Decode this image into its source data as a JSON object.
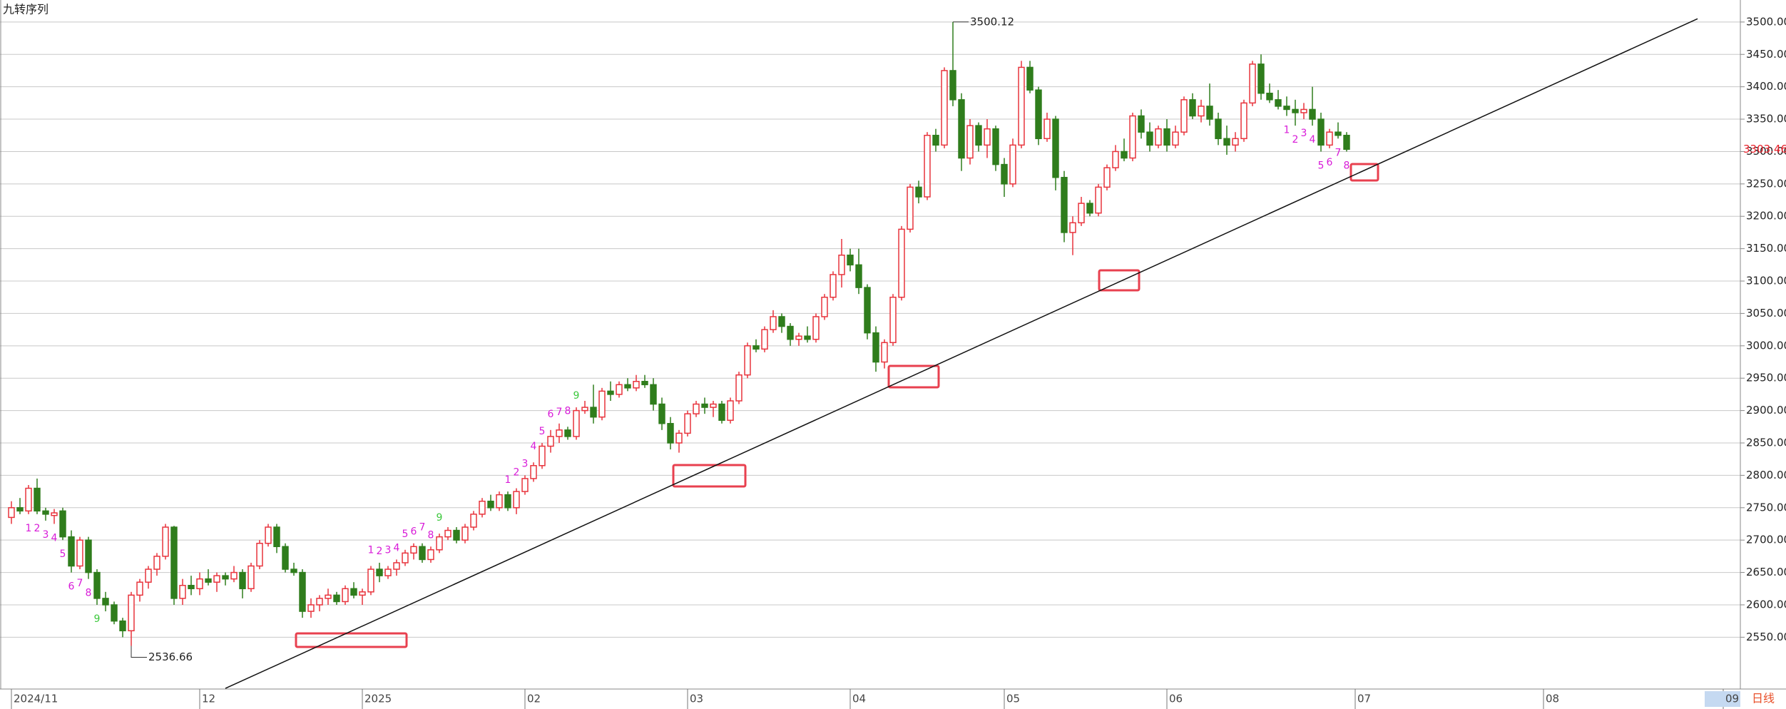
{
  "chart_data": {
    "type": "candlestick",
    "title": "九转序列",
    "period_label": "日线",
    "open": [
      2735,
      2750,
      2745,
      2780,
      2745,
      2738,
      2745,
      2705,
      2660,
      2700,
      2650,
      2610,
      2600,
      2575,
      2560,
      2615,
      2635,
      2655,
      2675,
      2720,
      2610,
      2630,
      2625,
      2640,
      2635,
      2645,
      2640,
      2650,
      2625,
      2660,
      2695,
      2720,
      2690,
      2655,
      2650,
      2590,
      2600,
      2610,
      2615,
      2605,
      2625,
      2615,
      2620,
      2655,
      2645,
      2655,
      2665,
      2680,
      2690,
      2670,
      2685,
      2705,
      2715,
      2700,
      2720,
      2740,
      2760,
      2750,
      2770,
      2750,
      2775,
      2795,
      2815,
      2845,
      2860,
      2870,
      2860,
      2900,
      2905,
      2890,
      2930,
      2925,
      2940,
      2935,
      2945,
      2940,
      2910,
      2880,
      2850,
      2865,
      2895,
      2910,
      2905,
      2910,
      2885,
      2915,
      2955,
      3000,
      2995,
      3025,
      3045,
      3030,
      3010,
      3015,
      3010,
      3045,
      3075,
      3110,
      3140,
      3125,
      3090,
      3020,
      2975,
      3005,
      3075,
      3180,
      3245,
      3230,
      3325,
      3310,
      3425,
      3380,
      3290,
      3340,
      3310,
      3335,
      3280,
      3250,
      3310,
      3430,
      3395,
      3320,
      3350,
      3260,
      3175,
      3190,
      3220,
      3205,
      3245,
      3275,
      3300,
      3290,
      3355,
      3330,
      3310,
      3335,
      3310,
      3330,
      3380,
      3355,
      3370,
      3350,
      3320,
      3310,
      3320,
      3375,
      3435,
      3390,
      3380,
      3370,
      3365,
      3360,
      3365,
      3350,
      3310,
      3330,
      3325
    ],
    "high": [
      2760,
      2765,
      2785,
      2795,
      2750,
      2748,
      2750,
      2715,
      2705,
      2705,
      2655,
      2620,
      2605,
      2580,
      2620,
      2640,
      2660,
      2680,
      2725,
      2722,
      2640,
      2645,
      2650,
      2655,
      2650,
      2650,
      2660,
      2655,
      2665,
      2700,
      2725,
      2725,
      2695,
      2665,
      2655,
      2610,
      2615,
      2625,
      2620,
      2630,
      2635,
      2625,
      2660,
      2665,
      2660,
      2670,
      2685,
      2695,
      2695,
      2690,
      2710,
      2720,
      2720,
      2725,
      2745,
      2765,
      2770,
      2775,
      2775,
      2780,
      2800,
      2820,
      2850,
      2870,
      2880,
      2875,
      2905,
      2915,
      2940,
      2935,
      2945,
      2945,
      2950,
      2955,
      2955,
      2950,
      2920,
      2890,
      2870,
      2900,
      2915,
      2920,
      2915,
      2915,
      2920,
      2960,
      3005,
      3010,
      3030,
      3055,
      3050,
      3035,
      3020,
      3030,
      3050,
      3080,
      3115,
      3165,
      3150,
      3150,
      3095,
      3030,
      3010,
      3080,
      3185,
      3250,
      3255,
      3330,
      3335,
      3430,
      3500.12,
      3390,
      3350,
      3345,
      3350,
      3340,
      3290,
      3320,
      3440,
      3440,
      3400,
      3360,
      3355,
      3270,
      3200,
      3230,
      3225,
      3250,
      3280,
      3310,
      3320,
      3360,
      3365,
      3345,
      3340,
      3350,
      3340,
      3385,
      3390,
      3380,
      3405,
      3360,
      3340,
      3330,
      3380,
      3440,
      3450,
      3405,
      3395,
      3385,
      3380,
      3375,
      3400,
      3360,
      3335,
      3345,
      3330
    ],
    "low": [
      2725,
      2740,
      2740,
      2740,
      2730,
      2725,
      2700,
      2650,
      2655,
      2640,
      2600,
      2590,
      2570,
      2550,
      2536.66,
      2605,
      2625,
      2645,
      2670,
      2600,
      2600,
      2615,
      2615,
      2630,
      2620,
      2630,
      2635,
      2610,
      2620,
      2655,
      2690,
      2680,
      2650,
      2645,
      2580,
      2580,
      2590,
      2600,
      2600,
      2600,
      2610,
      2600,
      2615,
      2635,
      2640,
      2645,
      2660,
      2670,
      2665,
      2665,
      2680,
      2700,
      2695,
      2695,
      2715,
      2735,
      2745,
      2745,
      2745,
      2740,
      2770,
      2790,
      2810,
      2835,
      2850,
      2855,
      2855,
      2895,
      2880,
      2885,
      2915,
      2920,
      2930,
      2930,
      2935,
      2900,
      2870,
      2840,
      2835,
      2860,
      2890,
      2895,
      2890,
      2880,
      2880,
      2910,
      2950,
      2990,
      2990,
      3020,
      3020,
      3000,
      3000,
      3005,
      3005,
      3040,
      3070,
      3090,
      3115,
      3080,
      3010,
      2960,
      2965,
      3000,
      3070,
      3175,
      3220,
      3225,
      3300,
      3305,
      3370,
      3270,
      3280,
      3300,
      3290,
      3270,
      3230,
      3245,
      3305,
      3390,
      3310,
      3315,
      3240,
      3160,
      3140,
      3185,
      3200,
      3200,
      3240,
      3270,
      3285,
      3285,
      3320,
      3300,
      3305,
      3300,
      3305,
      3325,
      3350,
      3345,
      3340,
      3310,
      3295,
      3300,
      3315,
      3370,
      3380,
      3375,
      3365,
      3355,
      3340,
      3350,
      3340,
      3300,
      3305,
      3320,
      3300
    ],
    "close": [
      2750,
      2745,
      2780,
      2745,
      2740,
      2742,
      2705,
      2660,
      2700,
      2650,
      2610,
      2600,
      2575,
      2560,
      2615,
      2635,
      2655,
      2675,
      2720,
      2610,
      2630,
      2625,
      2640,
      2635,
      2645,
      2640,
      2650,
      2625,
      2660,
      2695,
      2720,
      2690,
      2655,
      2650,
      2590,
      2600,
      2610,
      2615,
      2605,
      2625,
      2615,
      2620,
      2655,
      2645,
      2655,
      2665,
      2680,
      2690,
      2670,
      2685,
      2705,
      2715,
      2700,
      2720,
      2740,
      2760,
      2750,
      2770,
      2750,
      2775,
      2795,
      2815,
      2845,
      2860,
      2870,
      2860,
      2900,
      2905,
      2890,
      2930,
      2925,
      2940,
      2935,
      2945,
      2940,
      2910,
      2880,
      2850,
      2865,
      2895,
      2910,
      2905,
      2910,
      2885,
      2915,
      2955,
      3000,
      2995,
      3025,
      3045,
      3030,
      3010,
      3015,
      3010,
      3045,
      3075,
      3110,
      3140,
      3125,
      3090,
      3020,
      2975,
      3005,
      3075,
      3180,
      3245,
      3230,
      3325,
      3310,
      3425,
      3380,
      3290,
      3340,
      3310,
      3335,
      3280,
      3250,
      3310,
      3430,
      3395,
      3320,
      3350,
      3260,
      3175,
      3190,
      3220,
      3205,
      3245,
      3275,
      3300,
      3290,
      3355,
      3330,
      3310,
      3335,
      3310,
      3330,
      3380,
      3355,
      3370,
      3350,
      3320,
      3310,
      3320,
      3375,
      3435,
      3390,
      3380,
      3370,
      3365,
      3360,
      3365,
      3350,
      3310,
      3330,
      3325,
      3303.46
    ],
    "up_color": "#e8333c",
    "down_color": "#2f7d1c",
    "grid": true,
    "ylim": [
      2470,
      3534
    ],
    "yticks": [
      {
        "value": 2550,
        "label": "2550.00"
      },
      {
        "value": 2600,
        "label": "2600.00"
      },
      {
        "value": 2650,
        "label": "2650.00"
      },
      {
        "value": 2700,
        "label": "2700.00"
      },
      {
        "value": 2750,
        "label": "2750.00"
      },
      {
        "value": 2800,
        "label": "2800.00"
      },
      {
        "value": 2850,
        "label": "2850.00"
      },
      {
        "value": 2900,
        "label": "2900.00"
      },
      {
        "value": 2950,
        "label": "2950.00"
      },
      {
        "value": 3000,
        "label": "3000.00"
      },
      {
        "value": 3050,
        "label": "3050.00"
      },
      {
        "value": 3100,
        "label": "3100.00"
      },
      {
        "value": 3150,
        "label": "3150.00"
      },
      {
        "value": 3200,
        "label": "3200.00"
      },
      {
        "value": 3250,
        "label": "3250.00"
      },
      {
        "value": 3300,
        "label": "3300.00"
      },
      {
        "value": 3350,
        "label": "3350.00"
      },
      {
        "value": 3400,
        "label": "3400.00"
      },
      {
        "value": 3450,
        "label": "3450.00"
      },
      {
        "value": 3500,
        "label": "3500.00"
      }
    ],
    "xlim": [
      -1,
      202
    ],
    "xticks": [
      {
        "value": 0,
        "label": "2024/11"
      },
      {
        "value": 22,
        "label": "12"
      },
      {
        "value": 41,
        "label": "2025"
      },
      {
        "value": 60,
        "label": "02"
      },
      {
        "value": 79,
        "label": "03"
      },
      {
        "value": 98,
        "label": "04"
      },
      {
        "value": 116,
        "label": "05"
      },
      {
        "value": 135,
        "label": "06"
      },
      {
        "value": 157,
        "label": "07"
      },
      {
        "value": 179,
        "label": "08"
      },
      {
        "value": 200,
        "label": "09"
      }
    ],
    "td_marks": [
      {
        "i": 2,
        "n": 1,
        "pos": "below",
        "color": "#d81bd8"
      },
      {
        "i": 3,
        "n": 2,
        "pos": "below",
        "color": "#d81bd8"
      },
      {
        "i": 4,
        "n": 3,
        "pos": "below",
        "color": "#d81bd8"
      },
      {
        "i": 5,
        "n": 4,
        "pos": "below",
        "color": "#d81bd8"
      },
      {
        "i": 6,
        "n": 5,
        "pos": "below",
        "color": "#d81bd8"
      },
      {
        "i": 7,
        "n": 6,
        "pos": "below",
        "color": "#d81bd8"
      },
      {
        "i": 8,
        "n": 7,
        "pos": "below",
        "color": "#d81bd8"
      },
      {
        "i": 9,
        "n": 8,
        "pos": "below",
        "color": "#d81bd8"
      },
      {
        "i": 10,
        "n": 9,
        "pos": "below",
        "color": "#3cc83c"
      },
      {
        "i": 42,
        "n": 1,
        "pos": "above",
        "color": "#d81bd8"
      },
      {
        "i": 43,
        "n": 2,
        "pos": "above",
        "color": "#d81bd8"
      },
      {
        "i": 44,
        "n": 3,
        "pos": "above",
        "color": "#d81bd8"
      },
      {
        "i": 45,
        "n": 4,
        "pos": "above",
        "color": "#d81bd8"
      },
      {
        "i": 46,
        "n": 5,
        "pos": "above",
        "color": "#d81bd8"
      },
      {
        "i": 47,
        "n": 6,
        "pos": "above",
        "color": "#d81bd8"
      },
      {
        "i": 48,
        "n": 7,
        "pos": "above",
        "color": "#d81bd8"
      },
      {
        "i": 49,
        "n": 8,
        "pos": "above",
        "color": "#d81bd8"
      },
      {
        "i": 50,
        "n": 9,
        "pos": "above",
        "color": "#3cc83c"
      },
      {
        "i": 58,
        "n": 1,
        "pos": "above",
        "color": "#d81bd8"
      },
      {
        "i": 59,
        "n": 2,
        "pos": "above",
        "color": "#d81bd8"
      },
      {
        "i": 60,
        "n": 3,
        "pos": "above",
        "color": "#d81bd8"
      },
      {
        "i": 61,
        "n": 4,
        "pos": "above",
        "color": "#d81bd8"
      },
      {
        "i": 62,
        "n": 5,
        "pos": "above",
        "color": "#d81bd8"
      },
      {
        "i": 63,
        "n": 6,
        "pos": "above",
        "color": "#d81bd8"
      },
      {
        "i": 64,
        "n": 7,
        "pos": "above",
        "color": "#d81bd8"
      },
      {
        "i": 65,
        "n": 8,
        "pos": "above",
        "color": "#d81bd8"
      },
      {
        "i": 66,
        "n": 9,
        "pos": "above",
        "color": "#3cc83c"
      },
      {
        "i": 149,
        "n": 1,
        "pos": "below",
        "color": "#d81bd8"
      },
      {
        "i": 150,
        "n": 2,
        "pos": "below",
        "color": "#d81bd8"
      },
      {
        "i": 151,
        "n": 3,
        "pos": "below",
        "color": "#d81bd8"
      },
      {
        "i": 152,
        "n": 4,
        "pos": "below",
        "color": "#d81bd8"
      },
      {
        "i": 153,
        "n": 5,
        "pos": "below",
        "color": "#d81bd8"
      },
      {
        "i": 154,
        "n": 6,
        "pos": "below",
        "color": "#d81bd8"
      },
      {
        "i": 155,
        "n": 7,
        "pos": "below",
        "color": "#d81bd8"
      },
      {
        "i": 156,
        "n": 8,
        "pos": "below",
        "color": "#d81bd8"
      }
    ],
    "trendline": {
      "start": {
        "i": 25,
        "price": 2471
      },
      "end": {
        "i": 197,
        "price": 3505
      }
    }
  }
}
